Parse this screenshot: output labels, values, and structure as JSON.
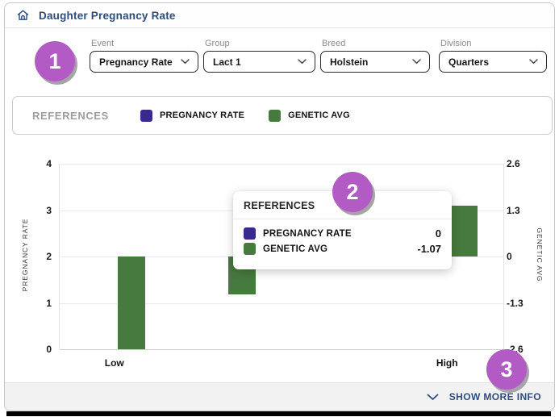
{
  "header": {
    "title": "Daughter Pregnancy Rate"
  },
  "filters": [
    {
      "label": "Event",
      "value": "Pregnancy Rate"
    },
    {
      "label": "Group",
      "value": "Lact 1"
    },
    {
      "label": "Breed",
      "value": "Holstein"
    },
    {
      "label": "Division",
      "value": "Quarters"
    }
  ],
  "references_bar": {
    "title": "REFERENCES",
    "items": [
      {
        "label": "PREGNANCY RATE",
        "color": "#372a8c"
      },
      {
        "label": "GENETIC AVG",
        "color": "#477a3e"
      }
    ]
  },
  "tooltip": {
    "title": "REFERENCES",
    "rows": [
      {
        "label": "PREGNANCY RATE",
        "color": "#372a8c",
        "value": "0"
      },
      {
        "label": "GENETIC AVG",
        "color": "#477a3e",
        "value": "-1.07"
      }
    ]
  },
  "annotations": [
    "1",
    "2",
    "3"
  ],
  "footer": {
    "show_more_label": "SHOW MORE INFO"
  },
  "icons": {
    "home": "house-outline",
    "select_chevron": "chevron-down",
    "footer_chevron": "chevron-down"
  },
  "colors": {
    "accent_navy": "#2e4d7b",
    "bar_green": "#477a3e",
    "legend_purple": "#372a8c",
    "badge_purple": "#b35bc4",
    "footer_bg": "#f2f2f2"
  },
  "chart_data": {
    "type": "bar",
    "title": "",
    "categories": [
      "Low",
      "",
      "",
      "High"
    ],
    "left_axis": {
      "label": "PREGNANCY RATE",
      "range": [
        0,
        4
      ],
      "ticks": [
        0,
        1,
        2,
        3,
        4
      ]
    },
    "right_axis": {
      "label": "GENETIC AVG",
      "range": [
        -2.6,
        2.6
      ],
      "ticks": [
        -2.6,
        -1.3,
        0,
        1.3,
        2.6
      ]
    },
    "series": [
      {
        "name": "PREGNANCY RATE",
        "color": "#372a8c",
        "axis": "left",
        "values": [
          null,
          0,
          null,
          null
        ]
      },
      {
        "name": "GENETIC AVG",
        "color": "#477a3e",
        "axis": "right",
        "values": [
          -2.6,
          -1.07,
          null,
          1.43
        ]
      }
    ],
    "grid": true,
    "legend_position": "top-bar",
    "hovered_category_index": 1
  }
}
